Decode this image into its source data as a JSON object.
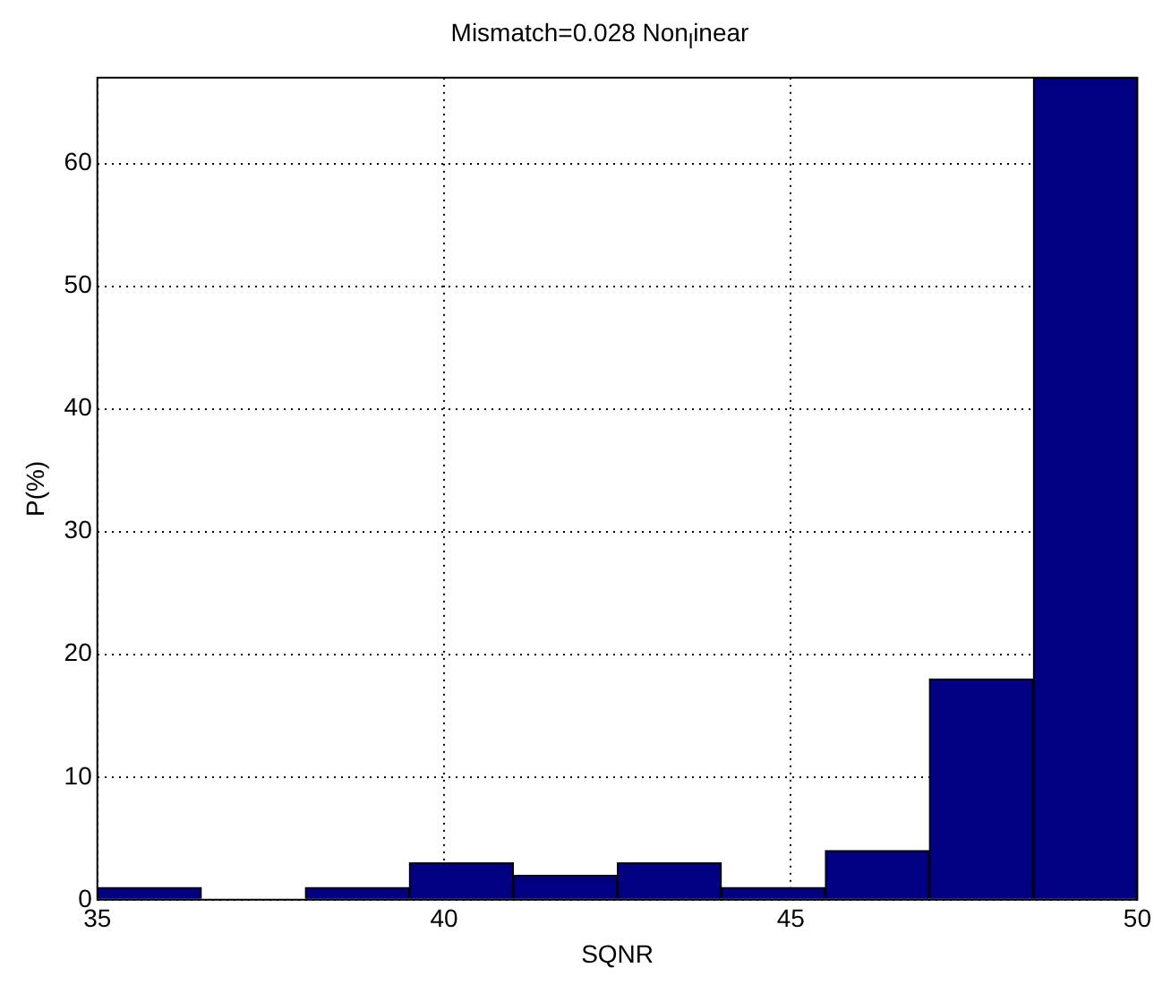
{
  "chart_data": {
    "type": "histogram",
    "title": "Mismatch=0.028 Non$_{l}$inear",
    "xlabel": "SQNR",
    "ylabel": "P(%)",
    "bins": [
      35,
      36.5,
      38,
      39.5,
      41,
      42.5,
      44,
      45.5,
      47,
      48.5,
      50
    ],
    "values": [
      1,
      0,
      1,
      3,
      2,
      3,
      1,
      4,
      18,
      67
    ],
    "color": "#000080",
    "xlim": [
      35,
      50
    ],
    "xticks": [
      35,
      40,
      45,
      50
    ],
    "ylim": [
      0,
      67
    ],
    "yticks": [
      0,
      10,
      20,
      30,
      40,
      50,
      60
    ],
    "grid": true
  }
}
